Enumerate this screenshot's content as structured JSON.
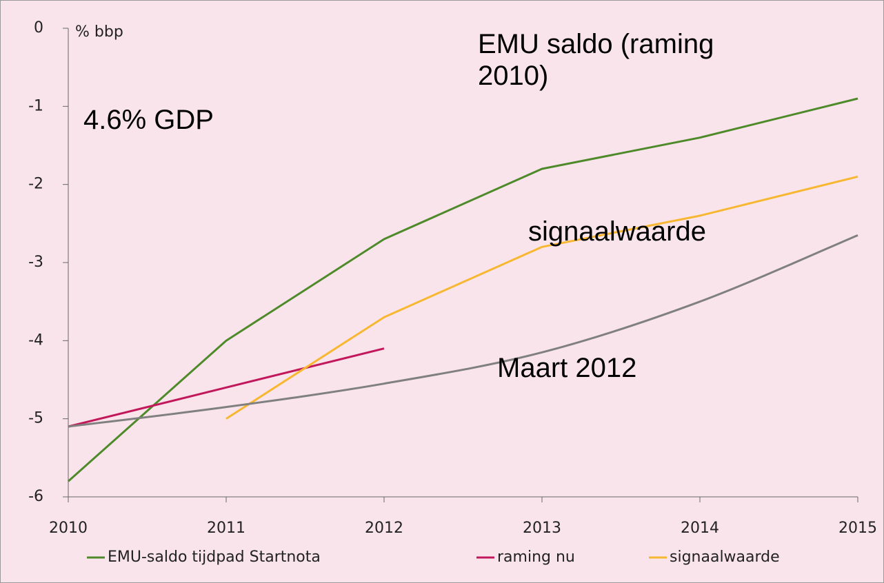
{
  "chart_data": {
    "type": "line",
    "y_label": "% bbp",
    "x": [
      2010,
      2011,
      2012,
      2013,
      2014,
      2015
    ],
    "xlim": [
      2010,
      2015
    ],
    "xticks": [
      2010,
      2011,
      2012,
      2013,
      2014,
      2015
    ],
    "ylim": [
      -6,
      0
    ],
    "yticks": [
      0,
      -1,
      -2,
      -3,
      -4,
      -5,
      -6
    ],
    "series": [
      {
        "name": "EMU-saldo tijdpad Startnota",
        "color": "#4e8a2a",
        "values": [
          -5.8,
          -4.0,
          -2.7,
          -1.8,
          -1.4,
          -0.9
        ]
      },
      {
        "name": "raming nu",
        "color": "#c2185b",
        "values": [
          -5.1,
          -4.6,
          -4.1,
          null,
          null,
          null
        ]
      },
      {
        "name": "signaalwaarde",
        "color": "#f7b731",
        "values": [
          null,
          -5.0,
          -3.7,
          -2.8,
          -2.4,
          -1.9
        ]
      },
      {
        "color": "#808080",
        "smooth": true,
        "values": [
          -5.1,
          -4.85,
          -4.55,
          -4.15,
          -3.5,
          -2.65
        ]
      }
    ],
    "annotations": [
      "EMU saldo (raming 2010)",
      "4.6% GDP",
      "signaalwaarde",
      "Maart 2012"
    ]
  }
}
